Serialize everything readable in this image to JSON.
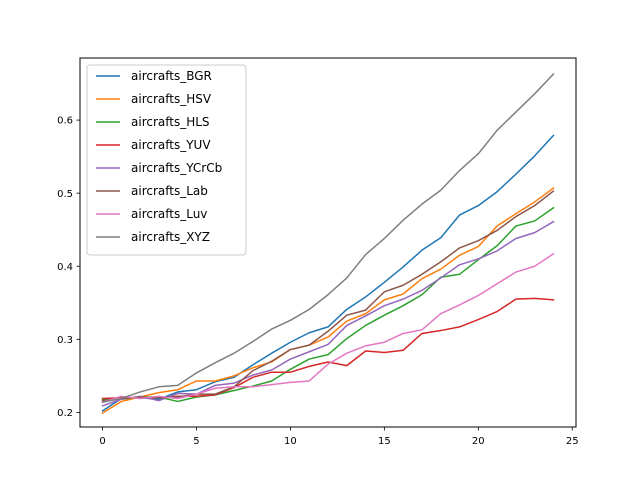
{
  "chart_data": {
    "type": "line",
    "title": "",
    "xlabel": "",
    "ylabel": "",
    "xlim": [
      -1.2,
      25.2
    ],
    "ylim": [
      0.18,
      0.685
    ],
    "xticks": [
      "0",
      "5",
      "10",
      "15",
      "20",
      "25"
    ],
    "yticks": [
      "0.2",
      "0.3",
      "0.4",
      "0.5",
      "0.6"
    ],
    "legend_position": "upper-left",
    "grid": false,
    "x": [
      0,
      1,
      2,
      3,
      4,
      5,
      6,
      7,
      8,
      9,
      10,
      11,
      12,
      13,
      14,
      15,
      16,
      17,
      18,
      19,
      20,
      21,
      22,
      23,
      24
    ],
    "series": [
      {
        "name": "aircrafts_BGR",
        "color": "#1f77b4",
        "values": [
          0.202,
          0.219,
          0.22,
          0.218,
          0.228,
          0.231,
          0.242,
          0.248,
          0.265,
          0.281,
          0.296,
          0.309,
          0.317,
          0.341,
          0.358,
          0.378,
          0.399,
          0.422,
          0.439,
          0.47,
          0.483,
          0.502,
          0.526,
          0.551,
          0.579
        ]
      },
      {
        "name": "aircrafts_HSV",
        "color": "#ff7f0e",
        "values": [
          0.199,
          0.215,
          0.221,
          0.227,
          0.231,
          0.243,
          0.243,
          0.25,
          0.261,
          0.269,
          0.286,
          0.292,
          0.303,
          0.325,
          0.335,
          0.354,
          0.362,
          0.383,
          0.396,
          0.415,
          0.427,
          0.455,
          0.472,
          0.488,
          0.507
        ]
      },
      {
        "name": "aircrafts_HLS",
        "color": "#2ca02c",
        "values": [
          0.218,
          0.218,
          0.221,
          0.221,
          0.215,
          0.221,
          0.224,
          0.23,
          0.236,
          0.243,
          0.259,
          0.273,
          0.279,
          0.301,
          0.319,
          0.333,
          0.346,
          0.361,
          0.385,
          0.389,
          0.409,
          0.428,
          0.455,
          0.462,
          0.48
        ]
      },
      {
        "name": "aircrafts_YUV",
        "color": "#d62728",
        "values": [
          0.219,
          0.22,
          0.22,
          0.22,
          0.222,
          0.222,
          0.224,
          0.234,
          0.248,
          0.255,
          0.255,
          0.263,
          0.269,
          0.264,
          0.284,
          0.282,
          0.285,
          0.308,
          0.312,
          0.317,
          0.327,
          0.338,
          0.355,
          0.356,
          0.354
        ]
      },
      {
        "name": "aircrafts_YCrCb",
        "color": "#9467bd",
        "values": [
          0.209,
          0.218,
          0.222,
          0.216,
          0.226,
          0.225,
          0.237,
          0.24,
          0.251,
          0.258,
          0.273,
          0.283,
          0.293,
          0.319,
          0.332,
          0.346,
          0.355,
          0.367,
          0.384,
          0.402,
          0.41,
          0.421,
          0.438,
          0.446,
          0.461
        ]
      },
      {
        "name": "aircrafts_Lab",
        "color": "#8c564b",
        "values": [
          0.216,
          0.219,
          0.221,
          0.22,
          0.221,
          0.225,
          0.225,
          0.235,
          0.257,
          0.27,
          0.286,
          0.292,
          0.311,
          0.333,
          0.34,
          0.365,
          0.374,
          0.389,
          0.406,
          0.425,
          0.435,
          0.449,
          0.468,
          0.483,
          0.503
        ]
      },
      {
        "name": "aircrafts_Luv",
        "color": "#e377c2",
        "values": [
          0.214,
          0.222,
          0.219,
          0.222,
          0.219,
          0.225,
          0.233,
          0.235,
          0.235,
          0.238,
          0.241,
          0.243,
          0.266,
          0.281,
          0.291,
          0.296,
          0.308,
          0.313,
          0.335,
          0.347,
          0.36,
          0.376,
          0.392,
          0.4,
          0.417
        ]
      },
      {
        "name": "aircrafts_XYZ",
        "color": "#7f7f7f",
        "values": [
          0.214,
          0.219,
          0.228,
          0.235,
          0.237,
          0.254,
          0.268,
          0.281,
          0.297,
          0.314,
          0.326,
          0.341,
          0.361,
          0.384,
          0.416,
          0.438,
          0.463,
          0.485,
          0.504,
          0.531,
          0.554,
          0.586,
          0.611,
          0.636,
          0.663
        ]
      }
    ]
  }
}
